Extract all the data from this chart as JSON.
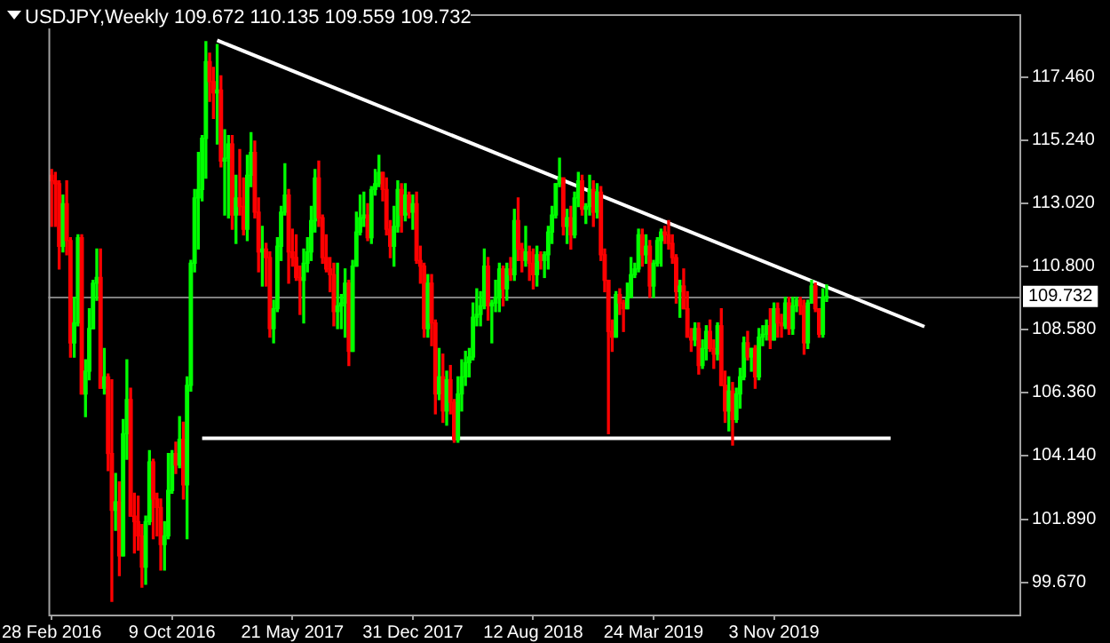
{
  "chart_data": {
    "type": "candlestick",
    "title": "USDJPY,Weekly 109.672 110.135 109.559 109.732",
    "x": [
      "2016-02-28",
      "2016-03-06",
      "2016-03-13",
      "2016-03-20",
      "2016-03-27",
      "2016-04-03",
      "2016-04-10",
      "2016-04-17",
      "2016-04-24",
      "2016-05-01",
      "2016-05-08",
      "2016-05-15",
      "2016-05-22",
      "2016-05-29",
      "2016-06-05",
      "2016-06-12",
      "2016-06-19",
      "2016-06-26",
      "2016-07-03",
      "2016-07-10",
      "2016-07-17",
      "2016-07-24",
      "2016-07-31",
      "2016-08-07",
      "2016-08-14",
      "2016-08-21",
      "2016-08-28",
      "2016-09-04",
      "2016-09-11",
      "2016-09-18",
      "2016-09-25",
      "2016-10-02",
      "2016-10-09",
      "2016-10-16",
      "2016-10-23",
      "2016-10-30",
      "2016-11-06",
      "2016-11-13",
      "2016-11-20",
      "2016-11-27",
      "2016-12-04",
      "2016-12-11",
      "2016-12-18",
      "2016-12-25",
      "2017-01-01",
      "2017-01-08",
      "2017-01-15",
      "2017-01-22",
      "2017-01-29",
      "2017-02-05",
      "2017-02-12",
      "2017-02-19",
      "2017-02-26",
      "2017-03-05",
      "2017-03-12",
      "2017-03-19",
      "2017-03-26",
      "2017-04-02",
      "2017-04-09",
      "2017-04-16",
      "2017-04-23",
      "2017-04-30",
      "2017-05-07",
      "2017-05-14",
      "2017-05-21",
      "2017-05-28",
      "2017-06-04",
      "2017-06-11",
      "2017-06-18",
      "2017-06-25",
      "2017-07-02",
      "2017-07-09",
      "2017-07-16",
      "2017-07-23",
      "2017-07-30",
      "2017-08-06",
      "2017-08-13",
      "2017-08-20",
      "2017-08-27",
      "2017-09-03",
      "2017-09-10",
      "2017-09-17",
      "2017-09-24",
      "2017-10-01",
      "2017-10-08",
      "2017-10-15",
      "2017-10-22",
      "2017-10-29",
      "2017-11-05",
      "2017-11-12",
      "2017-11-19",
      "2017-11-26",
      "2017-12-03",
      "2017-12-10",
      "2017-12-17",
      "2017-12-24",
      "2017-12-31",
      "2018-01-07",
      "2018-01-14",
      "2018-01-21",
      "2018-01-28",
      "2018-02-04",
      "2018-02-11",
      "2018-02-18",
      "2018-02-25",
      "2018-03-04",
      "2018-03-11",
      "2018-03-18",
      "2018-03-25",
      "2018-04-01",
      "2018-04-08",
      "2018-04-15",
      "2018-04-22",
      "2018-04-29",
      "2018-05-06",
      "2018-05-13",
      "2018-05-20",
      "2018-05-27",
      "2018-06-03",
      "2018-06-10",
      "2018-06-17",
      "2018-06-24",
      "2018-07-01",
      "2018-07-08",
      "2018-07-15",
      "2018-07-22",
      "2018-07-29",
      "2018-08-05",
      "2018-08-12",
      "2018-08-19",
      "2018-08-26",
      "2018-09-02",
      "2018-09-09",
      "2018-09-16",
      "2018-09-23",
      "2018-09-30",
      "2018-10-07",
      "2018-10-14",
      "2018-10-21",
      "2018-10-28",
      "2018-11-04",
      "2018-11-11",
      "2018-11-18",
      "2018-11-25",
      "2018-12-02",
      "2018-12-09",
      "2018-12-16",
      "2018-12-23",
      "2018-12-30",
      "2019-01-06",
      "2019-01-13",
      "2019-01-20",
      "2019-01-27",
      "2019-02-03",
      "2019-02-10",
      "2019-02-17",
      "2019-02-24",
      "2019-03-03",
      "2019-03-10",
      "2019-03-17",
      "2019-03-24",
      "2019-03-31",
      "2019-04-07",
      "2019-04-14",
      "2019-04-21",
      "2019-04-28",
      "2019-05-05",
      "2019-05-12",
      "2019-05-19",
      "2019-05-26",
      "2019-06-02",
      "2019-06-09",
      "2019-06-16",
      "2019-06-23",
      "2019-06-30",
      "2019-07-07",
      "2019-07-14",
      "2019-07-21",
      "2019-07-28",
      "2019-08-04",
      "2019-08-11",
      "2019-08-18",
      "2019-08-25",
      "2019-09-01",
      "2019-09-08",
      "2019-09-15",
      "2019-09-22",
      "2019-09-29",
      "2019-10-06",
      "2019-10-13",
      "2019-10-20",
      "2019-10-27",
      "2019-11-03",
      "2019-11-10",
      "2019-11-17",
      "2019-11-24",
      "2019-12-01",
      "2019-12-08",
      "2019-12-15",
      "2019-12-22",
      "2019-12-29",
      "2020-01-05",
      "2020-01-12",
      "2020-01-19",
      "2020-01-26",
      "2020-02-02",
      "2020-02-09"
    ],
    "ohlc": [
      [
        114.0,
        114.2,
        112.2,
        113.8
      ],
      [
        113.8,
        114.1,
        112.2,
        113.7
      ],
      [
        113.7,
        113.8,
        110.7,
        111.5
      ],
      [
        111.5,
        113.3,
        111.3,
        113.0
      ],
      [
        113.0,
        113.8,
        111.2,
        111.7
      ],
      [
        111.7,
        111.8,
        107.6,
        108.1
      ],
      [
        108.1,
        109.7,
        107.6,
        108.8
      ],
      [
        108.8,
        111.9,
        108.7,
        111.8
      ],
      [
        111.8,
        111.9,
        106.3,
        106.3
      ],
      [
        106.3,
        107.5,
        105.5,
        107.1
      ],
      [
        107.1,
        109.3,
        106.8,
        108.6
      ],
      [
        108.6,
        110.3,
        108.6,
        110.2
      ],
      [
        110.2,
        111.4,
        109.6,
        110.4
      ],
      [
        110.4,
        111.4,
        106.5,
        106.5
      ],
      [
        106.5,
        107.9,
        106.3,
        106.9
      ],
      [
        106.9,
        107.0,
        103.6,
        104.2
      ],
      [
        104.2,
        106.8,
        99.0,
        102.2
      ],
      [
        102.2,
        103.5,
        101.5,
        102.5
      ],
      [
        102.5,
        103.2,
        99.9,
        100.6
      ],
      [
        100.6,
        105.4,
        100.6,
        104.9
      ],
      [
        104.9,
        107.5,
        104.0,
        106.1
      ],
      [
        106.1,
        106.5,
        102.0,
        102.0
      ],
      [
        102.0,
        102.8,
        100.7,
        101.8
      ],
      [
        101.8,
        102.7,
        100.8,
        101.3
      ],
      [
        101.3,
        101.7,
        99.5,
        100.2
      ],
      [
        100.2,
        102.0,
        99.6,
        101.8
      ],
      [
        101.8,
        104.3,
        101.7,
        103.9
      ],
      [
        103.9,
        104.0,
        101.2,
        102.6
      ],
      [
        102.6,
        102.8,
        101.3,
        102.3
      ],
      [
        102.3,
        102.6,
        100.1,
        101.0
      ],
      [
        101.0,
        101.8,
        100.1,
        101.3
      ],
      [
        101.3,
        104.2,
        101.2,
        102.9
      ],
      [
        102.9,
        104.3,
        102.8,
        104.2
      ],
      [
        104.2,
        104.6,
        103.5,
        103.8
      ],
      [
        103.8,
        105.5,
        103.7,
        104.7
      ],
      [
        104.7,
        105.3,
        102.6,
        103.1
      ],
      [
        103.1,
        106.9,
        101.2,
        106.6
      ],
      [
        106.6,
        111.0,
        106.4,
        110.9
      ],
      [
        110.9,
        113.5,
        110.6,
        113.2
      ],
      [
        113.2,
        114.8,
        111.4,
        113.5
      ],
      [
        113.5,
        115.4,
        113.1,
        115.3
      ],
      [
        115.3,
        118.7,
        113.9,
        118.0
      ],
      [
        118.0,
        118.3,
        116.6,
        117.3
      ],
      [
        117.3,
        117.8,
        116.0,
        116.9
      ],
      [
        116.9,
        118.6,
        115.1,
        117.0
      ],
      [
        117.0,
        117.5,
        114.3,
        114.5
      ],
      [
        114.5,
        115.6,
        112.6,
        114.6
      ],
      [
        114.6,
        115.4,
        112.5,
        115.1
      ],
      [
        115.1,
        115.4,
        112.1,
        112.6
      ],
      [
        112.6,
        114.0,
        111.6,
        113.2
      ],
      [
        113.2,
        114.9,
        112.6,
        112.9
      ],
      [
        112.9,
        113.9,
        111.9,
        112.1
      ],
      [
        112.1,
        114.7,
        111.7,
        114.0
      ],
      [
        114.0,
        115.5,
        113.6,
        114.8
      ],
      [
        114.8,
        115.2,
        112.5,
        112.7
      ],
      [
        112.7,
        113.2,
        110.6,
        111.3
      ],
      [
        111.3,
        112.2,
        110.1,
        111.4
      ],
      [
        111.4,
        111.6,
        110.1,
        111.1
      ],
      [
        111.1,
        111.3,
        108.3,
        108.6
      ],
      [
        108.6,
        109.6,
        108.1,
        109.3
      ],
      [
        109.3,
        111.8,
        109.2,
        111.5
      ],
      [
        111.5,
        112.9,
        111.0,
        112.7
      ],
      [
        112.7,
        114.4,
        112.6,
        113.3
      ],
      [
        113.3,
        113.5,
        110.2,
        111.3
      ],
      [
        111.3,
        112.1,
        110.8,
        111.1
      ],
      [
        111.1,
        111.9,
        110.3,
        110.4
      ],
      [
        110.4,
        110.8,
        109.1,
        110.3
      ],
      [
        110.3,
        111.4,
        108.8,
        110.9
      ],
      [
        110.9,
        111.8,
        110.6,
        111.3
      ],
      [
        111.3,
        112.9,
        111.0,
        112.4
      ],
      [
        112.4,
        114.2,
        112.0,
        113.9
      ],
      [
        113.9,
        114.5,
        112.2,
        112.5
      ],
      [
        112.5,
        112.6,
        110.9,
        111.1
      ],
      [
        111.1,
        111.9,
        110.6,
        110.7
      ],
      [
        110.7,
        111.1,
        109.9,
        110.5
      ],
      [
        110.5,
        110.9,
        108.7,
        109.2
      ],
      [
        109.2,
        110.9,
        108.6,
        109.4
      ],
      [
        109.4,
        109.8,
        108.6,
        109.5
      ],
      [
        109.5,
        110.7,
        108.3,
        110.2
      ],
      [
        110.2,
        110.3,
        107.3,
        107.8
      ],
      [
        107.8,
        111.0,
        107.8,
        110.8
      ],
      [
        110.8,
        112.7,
        110.8,
        112.0
      ],
      [
        112.0,
        113.3,
        111.9,
        112.5
      ],
      [
        112.5,
        113.4,
        112.2,
        112.6
      ],
      [
        112.6,
        113.0,
        111.7,
        111.8
      ],
      [
        111.8,
        113.6,
        111.6,
        113.5
      ],
      [
        113.5,
        114.2,
        113.3,
        113.7
      ],
      [
        113.7,
        114.7,
        113.6,
        114.1
      ],
      [
        114.1,
        114.1,
        113.1,
        113.5
      ],
      [
        113.5,
        113.9,
        111.9,
        112.1
      ],
      [
        112.1,
        112.4,
        111.1,
        111.5
      ],
      [
        111.5,
        112.9,
        110.8,
        112.2
      ],
      [
        112.2,
        113.8,
        112.0,
        113.5
      ],
      [
        113.5,
        113.7,
        112.0,
        112.6
      ],
      [
        112.6,
        113.7,
        112.4,
        113.3
      ],
      [
        113.3,
        113.4,
        112.5,
        112.7
      ],
      [
        112.7,
        113.3,
        112.1,
        113.0
      ],
      [
        113.0,
        113.4,
        110.9,
        111.0
      ],
      [
        111.0,
        111.5,
        110.2,
        110.8
      ],
      [
        110.8,
        110.9,
        108.3,
        108.6
      ],
      [
        108.6,
        110.5,
        108.3,
        110.2
      ],
      [
        110.2,
        110.5,
        108.0,
        108.8
      ],
      [
        108.8,
        108.9,
        105.6,
        106.3
      ],
      [
        106.3,
        107.9,
        106.1,
        106.9
      ],
      [
        106.9,
        107.7,
        105.3,
        105.7
      ],
      [
        105.7,
        107.1,
        105.2,
        106.8
      ],
      [
        106.8,
        107.3,
        105.6,
        106.0
      ],
      [
        106.0,
        106.1,
        104.6,
        104.7
      ],
      [
        104.7,
        106.9,
        104.6,
        106.3
      ],
      [
        106.3,
        107.5,
        105.7,
        106.9
      ],
      [
        106.9,
        107.8,
        106.6,
        107.4
      ],
      [
        107.4,
        107.9,
        106.9,
        107.6
      ],
      [
        107.6,
        109.5,
        107.5,
        109.0
      ],
      [
        109.0,
        110.0,
        108.7,
        109.1
      ],
      [
        109.1,
        109.9,
        108.7,
        109.4
      ],
      [
        109.4,
        111.4,
        109.3,
        110.8
      ],
      [
        110.8,
        111.1,
        108.9,
        109.4
      ],
      [
        109.4,
        109.6,
        108.1,
        109.5
      ],
      [
        109.5,
        110.3,
        109.2,
        109.7
      ],
      [
        109.7,
        110.9,
        109.2,
        110.7
      ],
      [
        110.7,
        110.8,
        109.4,
        110.0
      ],
      [
        110.0,
        110.9,
        109.6,
        110.7
      ],
      [
        110.7,
        111.1,
        110.3,
        110.5
      ],
      [
        110.5,
        112.8,
        110.3,
        112.4
      ],
      [
        112.4,
        113.2,
        111.0,
        111.4
      ],
      [
        111.4,
        111.6,
        110.6,
        111.0
      ],
      [
        111.0,
        112.2,
        110.8,
        111.3
      ],
      [
        111.3,
        111.5,
        110.3,
        110.9
      ],
      [
        110.9,
        111.4,
        110.0,
        110.5
      ],
      [
        110.5,
        111.5,
        110.1,
        111.2
      ],
      [
        111.2,
        111.3,
        110.7,
        111.0
      ],
      [
        111.0,
        111.3,
        110.4,
        111.2
      ],
      [
        111.2,
        112.2,
        110.7,
        112.0
      ],
      [
        112.0,
        112.9,
        111.6,
        112.6
      ],
      [
        112.6,
        113.7,
        112.5,
        113.7
      ],
      [
        113.7,
        114.6,
        113.6,
        113.9
      ],
      [
        113.9,
        113.9,
        111.9,
        112.2
      ],
      [
        112.2,
        112.8,
        111.6,
        112.5
      ],
      [
        112.5,
        112.9,
        111.4,
        111.9
      ],
      [
        111.9,
        113.4,
        111.8,
        113.2
      ],
      [
        113.2,
        114.1,
        112.9,
        113.8
      ],
      [
        113.8,
        114.0,
        112.6,
        112.8
      ],
      [
        112.8,
        113.0,
        112.3,
        112.9
      ],
      [
        112.9,
        114.0,
        112.6,
        113.5
      ],
      [
        113.5,
        113.8,
        112.2,
        112.7
      ],
      [
        112.7,
        113.7,
        112.5,
        113.4
      ],
      [
        113.4,
        113.6,
        111.0,
        111.2
      ],
      [
        111.2,
        111.4,
        109.9,
        110.3
      ],
      [
        110.3,
        110.3,
        104.9,
        108.5
      ],
      [
        108.5,
        108.9,
        107.8,
        108.3
      ],
      [
        108.3,
        109.9,
        108.3,
        109.8
      ],
      [
        109.8,
        110.0,
        109.1,
        109.5
      ],
      [
        109.5,
        109.6,
        108.5,
        109.3
      ],
      [
        109.3,
        110.2,
        109.3,
        109.7
      ],
      [
        109.7,
        111.1,
        109.7,
        110.5
      ],
      [
        110.5,
        110.9,
        110.4,
        110.7
      ],
      [
        110.7,
        112.1,
        110.6,
        111.9
      ],
      [
        111.9,
        112.1,
        110.8,
        111.2
      ],
      [
        111.2,
        111.9,
        110.9,
        111.5
      ],
      [
        111.5,
        111.7,
        109.7,
        110.1
      ],
      [
        110.1,
        111.0,
        109.7,
        110.9
      ],
      [
        110.9,
        111.8,
        110.8,
        111.7
      ],
      [
        111.7,
        112.1,
        110.8,
        112.0
      ],
      [
        112.0,
        112.2,
        111.6,
        111.9
      ],
      [
        111.9,
        112.4,
        111.4,
        111.6
      ],
      [
        111.6,
        111.9,
        110.9,
        111.1
      ],
      [
        111.1,
        111.2,
        109.5,
        109.9
      ],
      [
        109.9,
        110.3,
        109.0,
        110.1
      ],
      [
        110.1,
        110.7,
        109.3,
        109.3
      ],
      [
        109.3,
        109.9,
        108.3,
        108.3
      ],
      [
        108.3,
        108.6,
        107.8,
        108.2
      ],
      [
        108.2,
        108.8,
        108.0,
        108.6
      ],
      [
        108.6,
        108.8,
        107.0,
        107.3
      ],
      [
        107.3,
        108.2,
        107.2,
        107.9
      ],
      [
        107.9,
        108.7,
        107.5,
        108.5
      ],
      [
        108.5,
        108.9,
        107.8,
        107.9
      ],
      [
        107.9,
        108.2,
        107.2,
        107.7
      ],
      [
        107.7,
        108.8,
        107.5,
        108.7
      ],
      [
        108.7,
        109.3,
        106.6,
        106.6
      ],
      [
        106.6,
        107.1,
        105.3,
        105.7
      ],
      [
        105.7,
        106.9,
        105.0,
        106.4
      ],
      [
        106.4,
        106.7,
        104.5,
        105.4
      ],
      [
        105.4,
        106.5,
        105.3,
        106.3
      ],
      [
        106.3,
        107.2,
        105.8,
        106.9
      ],
      [
        106.9,
        108.3,
        106.8,
        108.1
      ],
      [
        108.1,
        108.5,
        107.5,
        107.6
      ],
      [
        107.6,
        107.9,
        107.1,
        107.9
      ],
      [
        107.9,
        108.0,
        106.5,
        106.9
      ],
      [
        106.9,
        108.6,
        106.8,
        108.3
      ],
      [
        108.3,
        108.7,
        108.0,
        108.4
      ],
      [
        108.4,
        108.9,
        108.2,
        108.7
      ],
      [
        108.7,
        109.3,
        107.9,
        108.2
      ],
      [
        108.2,
        109.5,
        108.2,
        109.3
      ],
      [
        109.3,
        109.5,
        108.3,
        108.8
      ],
      [
        108.8,
        109.1,
        108.3,
        108.7
      ],
      [
        108.7,
        109.7,
        108.6,
        109.5
      ],
      [
        109.5,
        109.7,
        108.4,
        108.6
      ],
      [
        108.6,
        109.7,
        108.4,
        109.4
      ],
      [
        109.4,
        109.7,
        109.2,
        109.6
      ],
      [
        109.6,
        109.7,
        109.1,
        109.4
      ],
      [
        109.4,
        109.6,
        107.7,
        108.1
      ],
      [
        108.1,
        109.6,
        107.9,
        109.5
      ],
      [
        109.5,
        110.3,
        109.5,
        110.1
      ],
      [
        110.1,
        110.2,
        109.2,
        109.3
      ],
      [
        109.3,
        109.3,
        108.3,
        108.4
      ],
      [
        108.4,
        110.0,
        108.3,
        109.7
      ],
      [
        109.672,
        110.135,
        109.559,
        109.732
      ]
    ],
    "series": [
      {
        "type": "line",
        "color": "#ffffff",
        "x": [
          "2017-01-01",
          "2020-08-09"
        ],
        "values": [
          118.75,
          108.67
        ]
      },
      {
        "type": "line",
        "color": "#ffffff",
        "x": [
          "2016-12-04",
          "2020-06-07"
        ],
        "values": [
          104.74,
          104.74
        ]
      }
    ],
    "xlim": [
      "2016-02-22",
      "2021-02-05"
    ],
    "xticks": [
      {
        "value": "2016-02-28",
        "label": "28 Feb 2016"
      },
      {
        "value": "2016-10-09",
        "label": "9 Oct 2016"
      },
      {
        "value": "2017-05-21",
        "label": "21 May 2017"
      },
      {
        "value": "2017-12-31",
        "label": "31 Dec 2017"
      },
      {
        "value": "2018-08-12",
        "label": "12 Aug 2018"
      },
      {
        "value": "2019-03-24",
        "label": "24 Mar 2019"
      },
      {
        "value": "2019-11-03",
        "label": "3 Nov 2019"
      }
    ],
    "ylim": [
      98.53,
      119.67
    ],
    "yticks": [
      {
        "value": 99.67,
        "label": "99.670"
      },
      {
        "value": 101.89,
        "label": "101.890"
      },
      {
        "value": 104.14,
        "label": "104.140"
      },
      {
        "value": 106.36,
        "label": "106.360"
      },
      {
        "value": 108.58,
        "label": "108.580"
      },
      {
        "value": 110.8,
        "label": "110.800"
      },
      {
        "value": 113.02,
        "label": "113.020"
      },
      {
        "value": 115.24,
        "label": "115.240"
      },
      {
        "value": 117.46,
        "label": "117.460"
      }
    ],
    "ref_lines": [
      {
        "axis": "y",
        "value": 109.732,
        "label": "109.732",
        "color": "#808080"
      }
    ]
  }
}
